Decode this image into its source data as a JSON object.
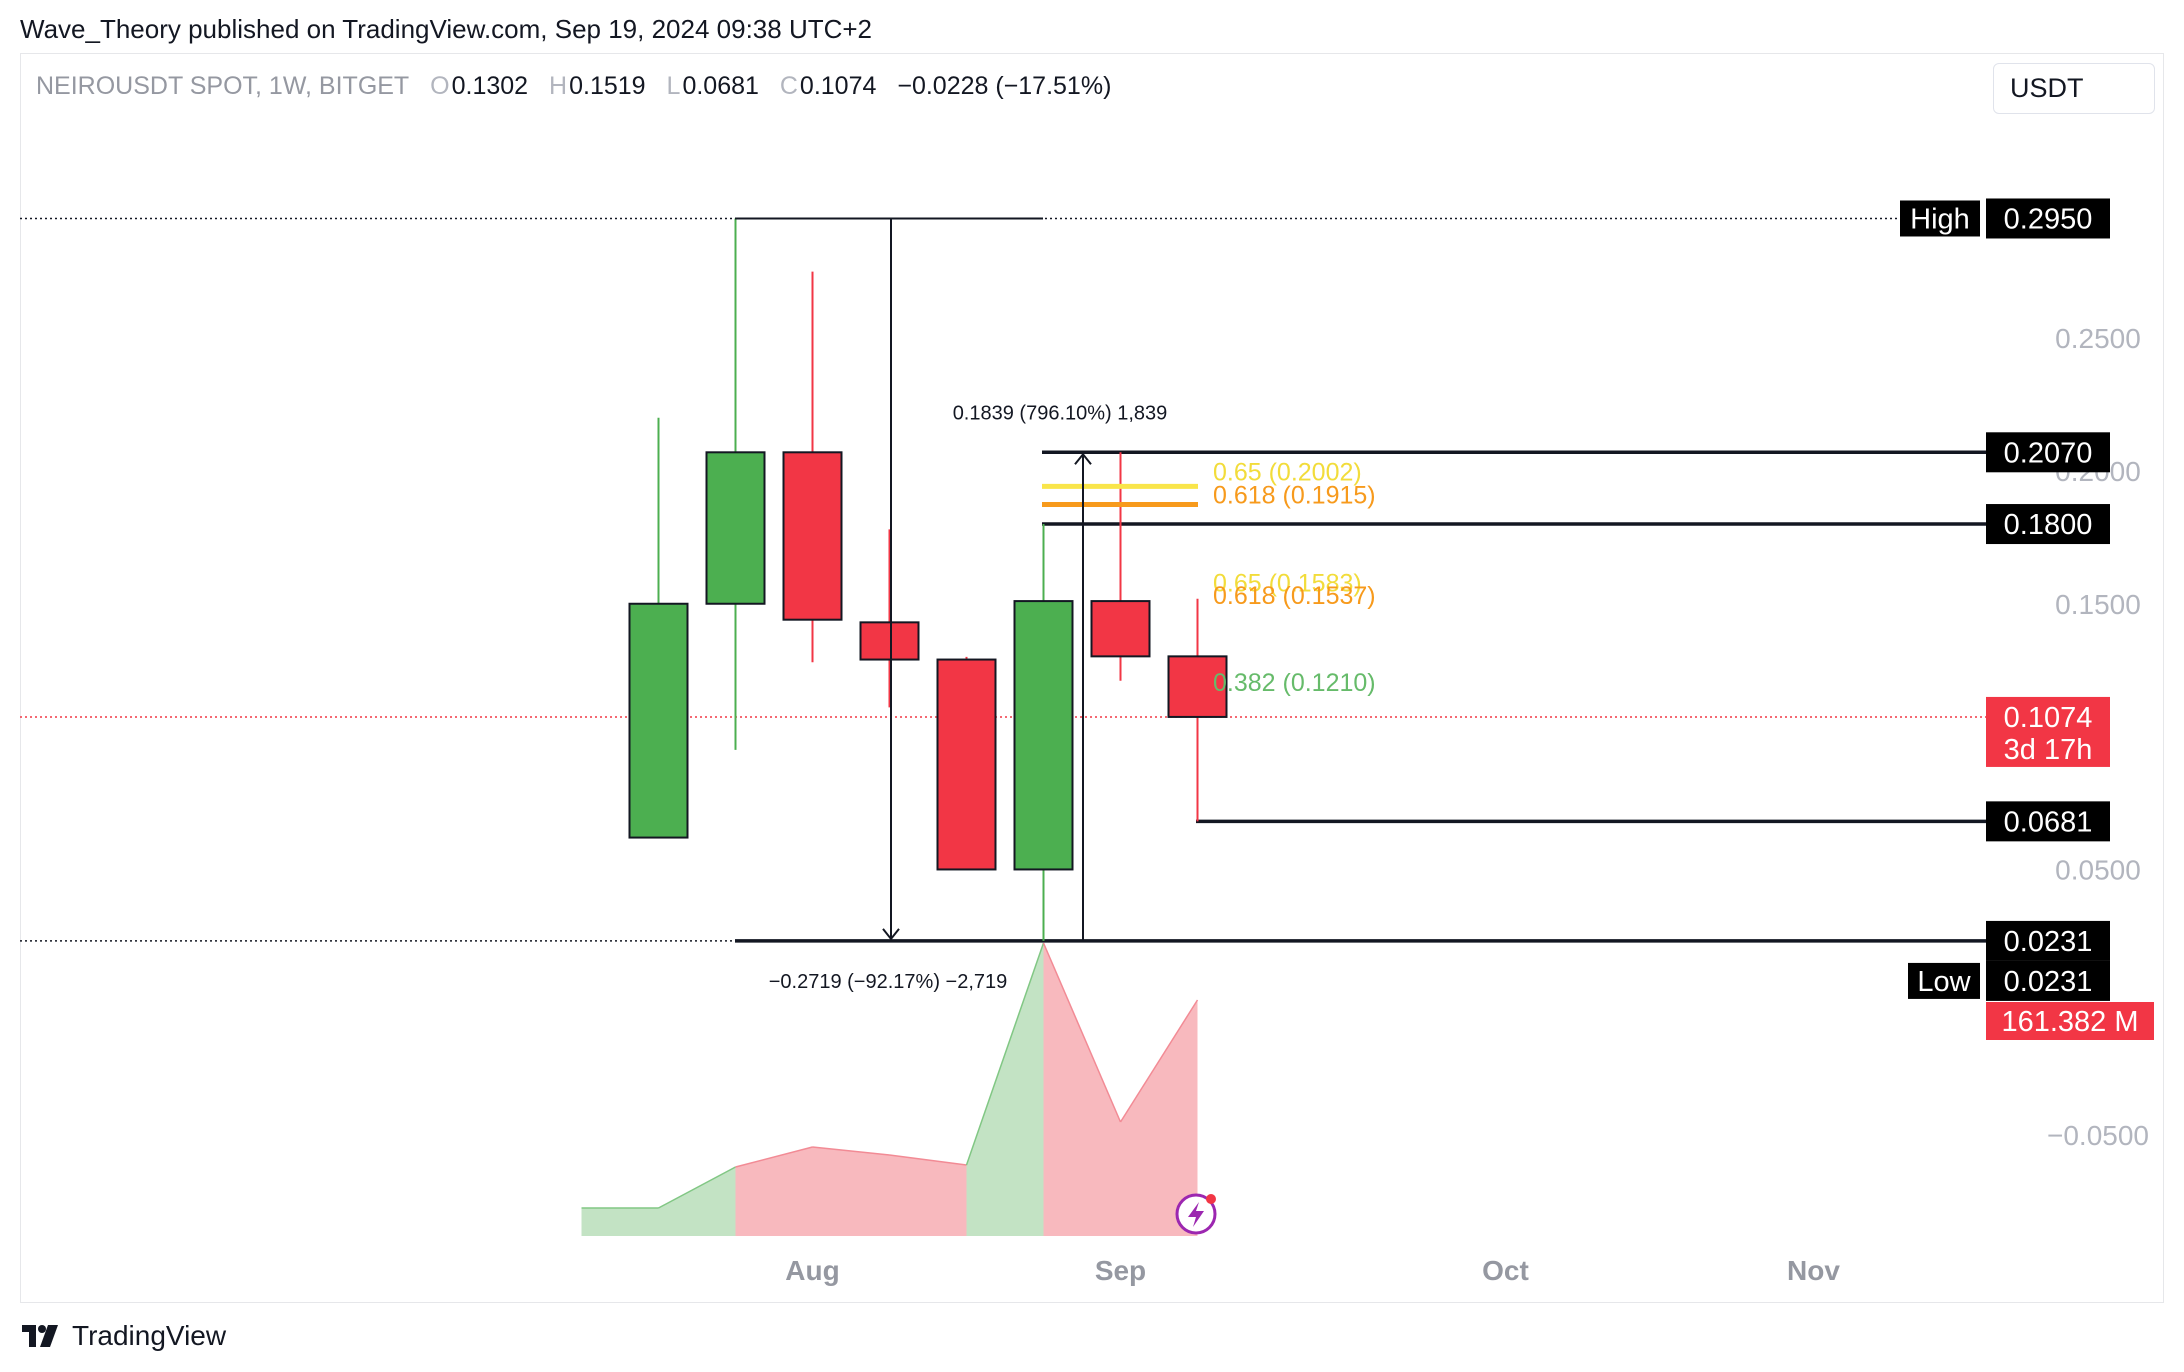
{
  "header": {
    "published": "Wave_Theory published on TradingView.com, Sep 19, 2024 09:38 UTC+2",
    "symbol": "NEIROUSDT SPOT, 1W, BITGET",
    "open_key": "O",
    "open": "0.1302",
    "high_key": "H",
    "high": "0.1519",
    "low_key": "L",
    "low": "0.0681",
    "close_key": "C",
    "close": "0.1074",
    "change": "−0.0228 (−17.51%)",
    "currency": "USDT"
  },
  "footer": {
    "brand": "TradingView"
  },
  "colors": {
    "up": "#4caf50",
    "down": "#f23645",
    "vol_up": "#c3e3c4",
    "vol_down": "#f8b9be",
    "fib_yellow": "#f9e54a",
    "fib_orange": "#f79a1c",
    "fib_green": "#66bb6a",
    "price_red": "#f23645"
  },
  "chart_data": {
    "type": "candlestick",
    "timeframe": "1W",
    "y_tick_labels": [
      "0.2500",
      "0.2000",
      "0.1500",
      "0.0500",
      "−0.0500"
    ],
    "y_ticks": [
      0.25,
      0.2,
      0.15,
      0.05,
      -0.05
    ],
    "x_tick_labels": [
      "Aug",
      "Sep",
      "Oct",
      "Nov"
    ],
    "x_ticks": [
      "2024-08-05",
      "2024-09-02",
      "2024-10-07",
      "2024-11-04"
    ],
    "candles": [
      {
        "date": "2024-07-22",
        "open": 0.062,
        "high": 0.22,
        "low": 0.062,
        "close": 0.15
      },
      {
        "date": "2024-07-29",
        "open": 0.15,
        "high": 0.295,
        "low": 0.095,
        "close": 0.207
      },
      {
        "date": "2024-08-05",
        "open": 0.207,
        "high": 0.275,
        "low": 0.128,
        "close": 0.144
      },
      {
        "date": "2024-08-12",
        "open": 0.143,
        "high": 0.178,
        "low": 0.111,
        "close": 0.129
      },
      {
        "date": "2024-08-19",
        "open": 0.129,
        "high": 0.13,
        "low": 0.05,
        "close": 0.05
      },
      {
        "date": "2024-08-26",
        "open": 0.05,
        "high": 0.18,
        "low": 0.0231,
        "close": 0.151
      },
      {
        "date": "2024-09-02",
        "open": 0.151,
        "high": 0.207,
        "low": 0.121,
        "close": 0.1302
      },
      {
        "date": "2024-09-09",
        "open": 0.1302,
        "high": 0.1519,
        "low": 0.0681,
        "close": 0.1074
      }
    ],
    "volume_series": [
      {
        "date": "2024-07-22",
        "direction": "up"
      },
      {
        "date": "2024-07-29",
        "direction": "up"
      },
      {
        "date": "2024-08-05",
        "direction": "down"
      },
      {
        "date": "2024-08-12",
        "direction": "down"
      },
      {
        "date": "2024-08-19",
        "direction": "down"
      },
      {
        "date": "2024-08-26",
        "direction": "up"
      },
      {
        "date": "2024-09-02",
        "direction": "down"
      },
      {
        "date": "2024-09-09",
        "direction": "down"
      }
    ],
    "volume_label": "161.382 M",
    "horizontal_levels": [
      {
        "value": 0.207,
        "label": "0.2070"
      },
      {
        "value": 0.18,
        "label": "0.1800"
      },
      {
        "value": 0.0681,
        "label": "0.0681"
      },
      {
        "value": 0.0231,
        "label": "0.0231"
      }
    ],
    "high_marker": {
      "name": "High",
      "value": 0.295,
      "label": "0.2950"
    },
    "low_marker": {
      "name": "Low",
      "value": 0.0231,
      "label": "0.0231"
    },
    "current_price": {
      "value": 0.1074,
      "label": "0.1074",
      "countdown": "3d 17h"
    },
    "fib_levels": [
      {
        "ratio_label": "0.65 (0.2002)",
        "value": 0.2002,
        "color": "fib_yellow"
      },
      {
        "ratio_label": "0.618 (0.1915)",
        "value": 0.1915,
        "color": "fib_orange"
      },
      {
        "ratio_label": "0.65 (0.1583)",
        "value": 0.1583,
        "color": "fib_yellow"
      },
      {
        "ratio_label": "0.618 (0.1537)",
        "value": 0.1537,
        "color": "fib_orange"
      },
      {
        "ratio_label": "0.382 (0.1210)",
        "value": 0.121,
        "color": "fib_green"
      }
    ],
    "measures": [
      {
        "label": "−0.2719 (−92.17%) −2,719",
        "from": 0.295,
        "to": 0.0231
      },
      {
        "label": "0.1839 (796.10%) 1,839",
        "from": 0.0231,
        "to": 0.207
      }
    ]
  }
}
